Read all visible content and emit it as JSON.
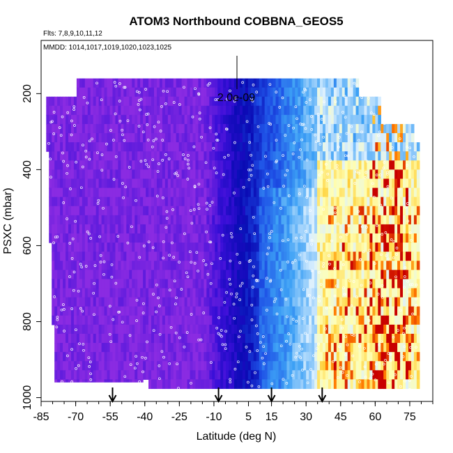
{
  "chart_data": {
    "type": "heatmap",
    "title": "ATOM3 Northbound COBBNA_GEOS5",
    "flights_text": "Flts: 7,8,9,10,11,12",
    "dates_text": "MMDD: 1014,1017,1019,1020,1023,1025",
    "xlabel": "Latitude (deg N)",
    "ylabel": "PSXC (mbar)",
    "xlim": [
      -85,
      85
    ],
    "ylim": [
      1010,
      60
    ],
    "y_reversed": true,
    "x_ticks": [
      -85,
      -70,
      -55,
      -40,
      -25,
      -10,
      5,
      15,
      30,
      45,
      60,
      75
    ],
    "x_tick_labels": [
      "-85",
      "-70",
      "-55",
      "-40",
      "-25",
      "-10",
      "5",
      "15",
      "30",
      "45",
      "60",
      "75"
    ],
    "y_ticks": [
      200,
      400,
      600,
      800,
      1000
    ],
    "y_tick_labels": [
      "200",
      "400",
      "600",
      "800",
      "1000"
    ],
    "scale_bar_label": "2.0e-09",
    "arrow_latitudes": [
      -54,
      -8,
      15,
      37
    ],
    "grid": false,
    "colors": {
      "background_fill": "#9a2ee8",
      "low": "#8a2be2",
      "mid_low": "#1a0fd0",
      "mid": "#3a7ff5",
      "high": "#e0f2ff",
      "peak_yellow": "#ffd23c",
      "peak_red": "#d20a00",
      "sample_dot": "#ffffff"
    },
    "color_scale_stops": [
      "#8a2be2",
      "#3a0fd8",
      "#0a0ab4",
      "#1e50e6",
      "#3ca0f5",
      "#dcf0ff",
      "#ffffb4",
      "#ffd23c",
      "#ff7800",
      "#c80000"
    ]
  }
}
